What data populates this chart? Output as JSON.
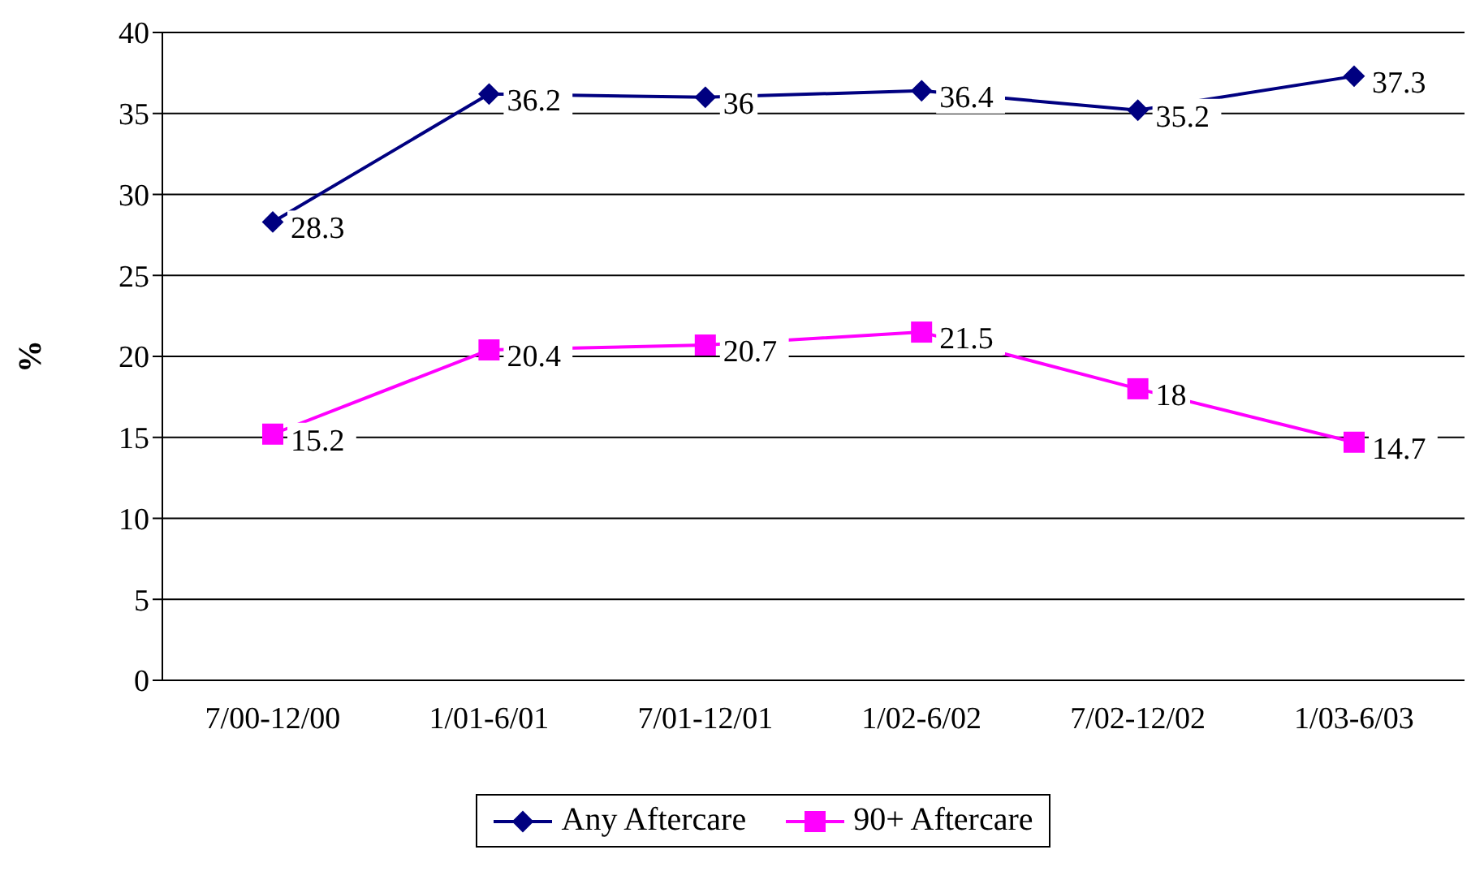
{
  "chart_data": {
    "type": "line",
    "ylabel": "%",
    "categories": [
      "7/00-12/00",
      "1/01-6/01",
      "7/01-12/01",
      "1/02-6/02",
      "7/02-12/02",
      "1/03-6/03"
    ],
    "series": [
      {
        "name": "Any Aftercare",
        "color": "#000080",
        "marker": "diamond",
        "values": [
          28.3,
          36.2,
          36,
          36.4,
          35.2,
          37.3
        ]
      },
      {
        "name": "90+ Aftercare",
        "color": "#ff00ff",
        "marker": "square",
        "values": [
          15.2,
          20.4,
          20.7,
          21.5,
          18,
          14.7
        ]
      }
    ],
    "ylim": [
      0,
      40
    ],
    "yticks": [
      0,
      5,
      10,
      15,
      20,
      25,
      30,
      35,
      40
    ],
    "grid": "y",
    "legend": "bottom",
    "data_labels": true
  }
}
